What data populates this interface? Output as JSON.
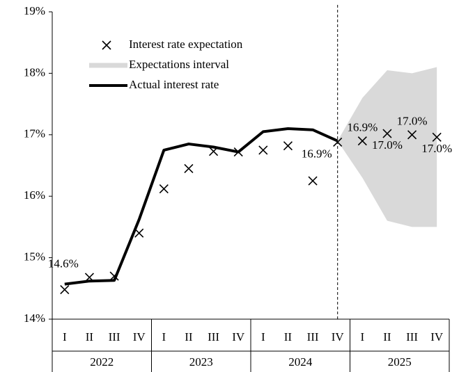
{
  "chart_data": {
    "type": "line",
    "categories": [
      "I",
      "II",
      "III",
      "IV",
      "I",
      "II",
      "III",
      "IV",
      "I",
      "II",
      "III",
      "IV",
      "I",
      "II",
      "III",
      "IV"
    ],
    "groups": [
      "2022",
      "2023",
      "2024",
      "2025"
    ],
    "ylim": [
      14,
      19
    ],
    "yticks": [
      {
        "value": 14,
        "label": "14%"
      },
      {
        "value": 15,
        "label": "15%"
      },
      {
        "value": 16,
        "label": "16%"
      },
      {
        "value": 17,
        "label": "17%"
      },
      {
        "value": 18,
        "label": "18%"
      },
      {
        "value": 19,
        "label": "19%"
      }
    ],
    "legend": "top-left",
    "series": [
      {
        "name": "Interest rate expectation",
        "kind": "marker",
        "color": "#000000",
        "values": [
          14.48,
          14.68,
          14.7,
          15.4,
          16.12,
          16.45,
          16.73,
          16.72,
          16.75,
          16.82,
          16.25,
          16.88,
          16.9,
          17.02,
          17.0,
          16.96
        ],
        "value_labels": [
          null,
          null,
          null,
          null,
          null,
          null,
          null,
          null,
          null,
          null,
          null,
          "16.9%",
          "16.9%",
          "17.0%",
          "17.0%",
          "17.0%"
        ]
      },
      {
        "name": "Expectations interval",
        "kind": "band",
        "color": "#d9d9d9",
        "low": [
          null,
          null,
          null,
          null,
          null,
          null,
          null,
          null,
          null,
          null,
          null,
          16.9,
          16.3,
          15.6,
          15.5,
          15.5
        ],
        "high": [
          null,
          null,
          null,
          null,
          null,
          null,
          null,
          null,
          null,
          null,
          null,
          16.9,
          17.6,
          18.05,
          18.0,
          18.1
        ]
      },
      {
        "name": "Actual interest rate",
        "kind": "line",
        "color": "#000000",
        "values": [
          14.57,
          14.62,
          14.63,
          15.62,
          16.75,
          16.85,
          16.8,
          16.72,
          17.05,
          17.1,
          17.08,
          16.9,
          null,
          null,
          null,
          null
        ],
        "value_labels": [
          "14.6%",
          null,
          null,
          null,
          null,
          null,
          null,
          null,
          null,
          null,
          null,
          null,
          null,
          null,
          null,
          null
        ]
      }
    ]
  }
}
